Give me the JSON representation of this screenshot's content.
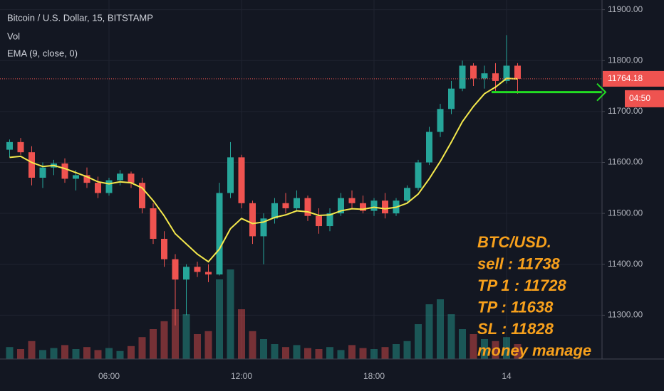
{
  "chart_data": {
    "type": "candlestick",
    "title": "Bitcoin / U.S. Dollar, 15, BITSTAMP",
    "indicators": [
      "Vol",
      "EMA (9, close, 0)"
    ],
    "categories": [
      null,
      null,
      null,
      null,
      null,
      null,
      null,
      null,
      null,
      "06:00",
      null,
      null,
      null,
      null,
      null,
      null,
      null,
      null,
      null,
      null,
      null,
      "12:00",
      null,
      null,
      null,
      null,
      null,
      null,
      null,
      null,
      null,
      null,
      null,
      "18:00",
      null,
      null,
      null,
      null,
      null,
      null,
      null,
      null,
      null,
      null,
      null,
      "14",
      null
    ],
    "open": [
      11625,
      11640,
      11620,
      11570,
      11590,
      11598,
      11568,
      11575,
      11560,
      11540,
      11565,
      11578,
      11560,
      11510,
      11450,
      11410,
      11370,
      11395,
      11385,
      11380,
      11540,
      11610,
      11520,
      11455,
      11490,
      11520,
      11510,
      11530,
      11495,
      11475,
      11500,
      11530,
      11520,
      11505,
      11525,
      11500,
      11525,
      11550,
      11600,
      11660,
      11705,
      11745,
      11790,
      11765,
      11775,
      11760,
      11790
    ],
    "high": [
      11645,
      11648,
      11632,
      11600,
      11605,
      11608,
      11585,
      11590,
      11572,
      11570,
      11585,
      11582,
      11570,
      11520,
      11465,
      11420,
      11400,
      11405,
      11400,
      11560,
      11640,
      11615,
      11525,
      11500,
      11530,
      11540,
      11545,
      11535,
      11510,
      11510,
      11540,
      11545,
      11535,
      11530,
      11540,
      11530,
      11555,
      11605,
      11670,
      11715,
      11760,
      11800,
      11795,
      11790,
      11795,
      11850,
      11795
    ],
    "low": [
      11610,
      11615,
      11555,
      11550,
      11575,
      11560,
      11545,
      11550,
      11530,
      11535,
      11555,
      11550,
      11500,
      11440,
      11395,
      11280,
      11300,
      11375,
      11365,
      11378,
      11530,
      11510,
      11440,
      11400,
      11480,
      11500,
      11505,
      11485,
      11460,
      11465,
      11495,
      11510,
      11500,
      11495,
      11490,
      11495,
      11520,
      11545,
      11595,
      11650,
      11695,
      11740,
      11750,
      11745,
      11740,
      11755,
      11735
    ],
    "close": [
      11640,
      11620,
      11570,
      11590,
      11598,
      11568,
      11575,
      11560,
      11540,
      11565,
      11578,
      11560,
      11510,
      11450,
      11410,
      11370,
      11395,
      11385,
      11380,
      11540,
      11610,
      11520,
      11455,
      11490,
      11520,
      11510,
      11530,
      11495,
      11475,
      11500,
      11530,
      11520,
      11505,
      11525,
      11500,
      11525,
      11550,
      11600,
      11660,
      11705,
      11745,
      11790,
      11765,
      11775,
      11760,
      11790,
      11764.18
    ],
    "volume": [
      12,
      10,
      18,
      9,
      11,
      14,
      10,
      12,
      9,
      11,
      8,
      13,
      22,
      30,
      38,
      50,
      45,
      25,
      28,
      80,
      90,
      50,
      28,
      20,
      15,
      12,
      14,
      11,
      10,
      12,
      9,
      14,
      11,
      10,
      12,
      15,
      18,
      35,
      55,
      60,
      45,
      30,
      25,
      20,
      18,
      22,
      15
    ],
    "ema": [
      11610,
      11612,
      11600,
      11592,
      11594,
      11588,
      11580,
      11572,
      11562,
      11558,
      11562,
      11560,
      11550,
      11525,
      11495,
      11460,
      11440,
      11420,
      11405,
      11430,
      11470,
      11490,
      11480,
      11483,
      11492,
      11497,
      11505,
      11503,
      11496,
      11497,
      11505,
      11509,
      11508,
      11512,
      11509,
      11512,
      11520,
      11538,
      11568,
      11602,
      11640,
      11680,
      11710,
      11735,
      11748,
      11765,
      11764
    ],
    "up_color": "#26a69a",
    "down_color": "#ef5350",
    "ema_color": "#f5e94c",
    "ylim": [
      11214,
      11919
    ],
    "yticks": [
      {
        "value": 11300,
        "label": "11300.00"
      },
      {
        "value": 11400,
        "label": "11400.00"
      },
      {
        "value": 11500,
        "label": "11500.00"
      },
      {
        "value": 11600,
        "label": "11600.00"
      },
      {
        "value": 11700,
        "label": "11700.00"
      },
      {
        "value": 11800,
        "label": "11800.00"
      },
      {
        "value": 11900,
        "label": "11900.00"
      }
    ],
    "grid": true,
    "last_price": 11764.18,
    "countdown": "04:50",
    "target_line": 11738,
    "annotations": [
      "BTC/USD.",
      "sell : 11738",
      "TP 1 : 11728",
      "TP : 11638",
      "SL : 11828",
      "money manage"
    ]
  }
}
